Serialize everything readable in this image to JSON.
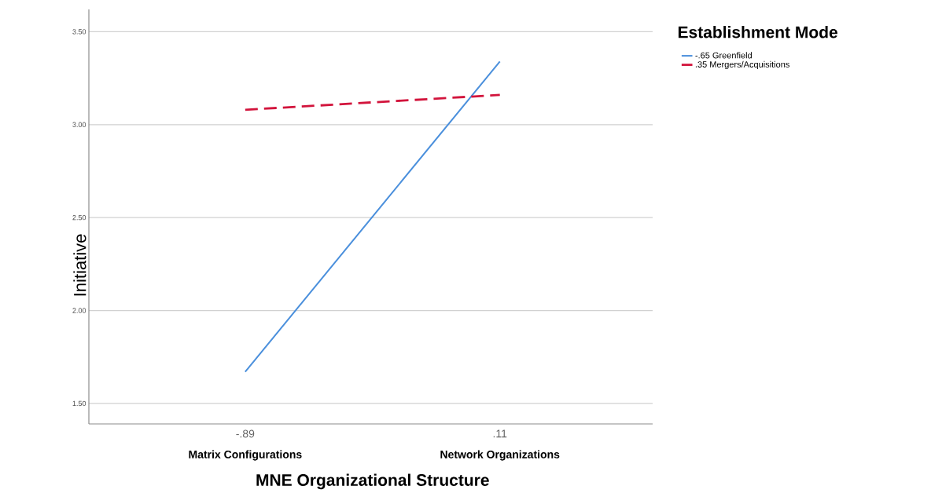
{
  "chart_data": {
    "type": "line",
    "xlabel": "MNE Organizational Structure",
    "ylabel": "Initiative",
    "legend_title": "Establishment Mode",
    "categories": [
      "-.89",
      ".11"
    ],
    "annotations": [
      "Matrix Configurations",
      "Network Organizations"
    ],
    "series": [
      {
        "name": "-.65 Greenfield",
        "color": "#4a8fdc",
        "line_style": "solid",
        "values": [
          1.67,
          3.34
        ]
      },
      {
        "name": ".35 Mergers/Acquisitions",
        "color": "#d2143c",
        "line_style": "dashed",
        "values": [
          3.08,
          3.16
        ]
      }
    ],
    "ylim": [
      1.39,
      3.62
    ],
    "yticks": [
      {
        "value": 1.5,
        "label": "1.50"
      },
      {
        "value": 2.0,
        "label": "2.00"
      },
      {
        "value": 2.5,
        "label": "2.50"
      },
      {
        "value": 3.0,
        "label": "3.00"
      },
      {
        "value": 3.5,
        "label": "3.50"
      }
    ],
    "grid": "y",
    "legend": "top right",
    "marker": "none"
  }
}
